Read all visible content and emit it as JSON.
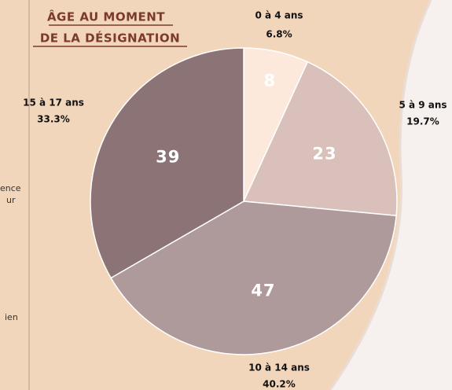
{
  "chart_data": {
    "type": "pie",
    "title_lines": [
      "ÂGE AU MOMENT",
      "DE LA DÉSIGNATION"
    ],
    "categories": [
      "0 à 4 ans",
      "5 à 9 ans",
      "10 à 14 ans",
      "15 à 17 ans"
    ],
    "values": [
      8,
      23,
      47,
      39
    ],
    "percentages": [
      6.8,
      19.7,
      40.2,
      33.3
    ],
    "percentage_labels": [
      "6.8%",
      "19.7%",
      "40.2%",
      "33.3%"
    ],
    "colors": [
      "#fde8dc",
      "#d9c0ba",
      "#ae999b",
      "#8b7376"
    ]
  },
  "side_fragments": [
    "ence",
    "ur",
    "ien"
  ]
}
